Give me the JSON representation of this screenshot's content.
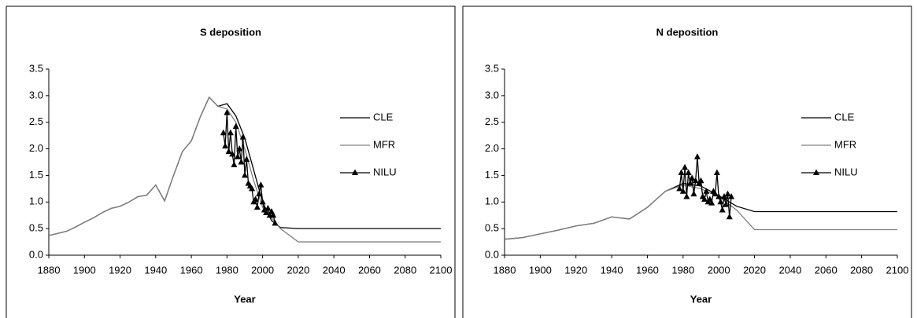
{
  "chart_data": [
    {
      "type": "line",
      "title": "S deposition",
      "x_label": "Year",
      "x": [
        1880,
        1890,
        1895,
        1900,
        1905,
        1910,
        1915,
        1920,
        1925,
        1930,
        1935,
        1940,
        1945,
        1950,
        1955,
        1960,
        1965,
        1970,
        1975,
        1980,
        1985,
        1990,
        1995,
        2000,
        2005,
        2010,
        2020,
        2030,
        2040,
        2050,
        2060,
        2070,
        2080,
        2090,
        2100
      ],
      "series": [
        {
          "name": "CLE",
          "color": "#000000",
          "values": [
            0.37,
            0.45,
            0.53,
            0.62,
            0.7,
            0.8,
            0.88,
            0.92,
            1.0,
            1.1,
            1.13,
            1.32,
            1.02,
            1.5,
            1.95,
            2.15,
            2.6,
            2.97,
            2.8,
            2.85,
            2.62,
            2.2,
            1.6,
            1.0,
            0.65,
            0.52,
            0.5,
            0.5,
            0.5,
            0.5,
            0.5,
            0.5,
            0.5,
            0.5,
            0.5
          ]
        },
        {
          "name": "MFR",
          "color": "#808080",
          "values": [
            0.37,
            0.45,
            0.53,
            0.62,
            0.7,
            0.8,
            0.88,
            0.92,
            1.0,
            1.1,
            1.13,
            1.32,
            1.02,
            1.5,
            1.95,
            2.15,
            2.6,
            2.97,
            2.8,
            2.75,
            2.5,
            2.0,
            1.4,
            0.9,
            0.7,
            0.5,
            0.25,
            0.25,
            0.25,
            0.25,
            0.25,
            0.25,
            0.25,
            0.25,
            0.25
          ]
        },
        {
          "name": "NILU",
          "color": "#000000",
          "marker": "triangle",
          "x": [
            1978,
            1979,
            1980,
            1981,
            1982,
            1983,
            1984,
            1985,
            1986,
            1987,
            1988,
            1989,
            1990,
            1991,
            1992,
            1993,
            1994,
            1995,
            1996,
            1997,
            1998,
            1999,
            2000,
            2001,
            2002,
            2003,
            2004,
            2005,
            2006,
            2007
          ],
          "values": [
            2.3,
            2.05,
            2.68,
            1.95,
            2.3,
            1.9,
            1.7,
            2.42,
            1.85,
            2.0,
            1.75,
            2.22,
            1.5,
            1.8,
            1.35,
            1.3,
            1.25,
            1.0,
            1.05,
            0.9,
            1.15,
            1.32,
            1.0,
            0.85,
            0.8,
            0.88,
            0.75,
            0.82,
            0.75,
            0.6
          ]
        }
      ],
      "xlim": [
        1880,
        2100
      ],
      "xticks": [
        1880,
        1900,
        1920,
        1940,
        1960,
        1980,
        2000,
        2020,
        2040,
        2060,
        2080,
        2100
      ],
      "ylim": [
        0,
        3.5
      ],
      "yticks": [
        {
          "value": 0,
          "label": "0.0"
        },
        {
          "value": 0.5,
          "label": "0.5"
        },
        {
          "value": 1,
          "label": "1.0"
        },
        {
          "value": 1.5,
          "label": "1.5"
        },
        {
          "value": 2,
          "label": "2.0"
        },
        {
          "value": 2.5,
          "label": "2.5"
        },
        {
          "value": 3,
          "label": "3.0"
        },
        {
          "value": 3.5,
          "label": "3.5"
        }
      ],
      "legend": "right"
    },
    {
      "type": "line",
      "title": "N deposition",
      "x_label": "Year",
      "x": [
        1880,
        1890,
        1900,
        1910,
        1920,
        1930,
        1940,
        1950,
        1960,
        1970,
        1980,
        1990,
        2000,
        2010,
        2020,
        2030,
        2040,
        2050,
        2060,
        2070,
        2080,
        2090,
        2100
      ],
      "series": [
        {
          "name": "CLE",
          "color": "#000000",
          "values": [
            0.3,
            0.33,
            0.4,
            0.47,
            0.55,
            0.6,
            0.72,
            0.68,
            0.9,
            1.2,
            1.35,
            1.3,
            1.12,
            0.92,
            0.82,
            0.82,
            0.82,
            0.82,
            0.82,
            0.82,
            0.82,
            0.82,
            0.82
          ]
        },
        {
          "name": "MFR",
          "color": "#808080",
          "values": [
            0.3,
            0.33,
            0.4,
            0.47,
            0.55,
            0.6,
            0.72,
            0.68,
            0.9,
            1.2,
            1.32,
            1.25,
            1.1,
            0.85,
            0.48,
            0.48,
            0.48,
            0.48,
            0.48,
            0.48,
            0.48,
            0.48,
            0.48
          ]
        },
        {
          "name": "NILU",
          "color": "#000000",
          "marker": "triangle",
          "x": [
            1978,
            1979,
            1980,
            1981,
            1982,
            1983,
            1984,
            1985,
            1986,
            1987,
            1988,
            1989,
            1990,
            1991,
            1992,
            1993,
            1994,
            1995,
            1996,
            1997,
            1998,
            1999,
            2000,
            2001,
            2002,
            2003,
            2004,
            2005,
            2006,
            2007
          ],
          "values": [
            1.25,
            1.55,
            1.2,
            1.65,
            1.1,
            1.55,
            1.35,
            1.45,
            1.15,
            1.4,
            1.85,
            1.35,
            1.4,
            1.1,
            1.05,
            1.2,
            1.0,
            1.05,
            0.98,
            1.2,
            1.15,
            1.55,
            1.1,
            1.0,
            0.85,
            1.1,
            0.95,
            1.15,
            0.72,
            1.1
          ]
        }
      ],
      "xlim": [
        1880,
        2100
      ],
      "xticks": [
        1880,
        1900,
        1920,
        1940,
        1960,
        1980,
        2000,
        2020,
        2040,
        2060,
        2080,
        2100
      ],
      "ylim": [
        0,
        3.5
      ],
      "yticks": [
        {
          "value": 0,
          "label": "0.0"
        },
        {
          "value": 0.5,
          "label": "0.5"
        },
        {
          "value": 1,
          "label": "1.0"
        },
        {
          "value": 1.5,
          "label": "1.5"
        },
        {
          "value": 2,
          "label": "2.0"
        },
        {
          "value": 2.5,
          "label": "2.5"
        },
        {
          "value": 3,
          "label": "3.0"
        },
        {
          "value": 3.5,
          "label": "3.5"
        }
      ],
      "legend": "right"
    }
  ]
}
